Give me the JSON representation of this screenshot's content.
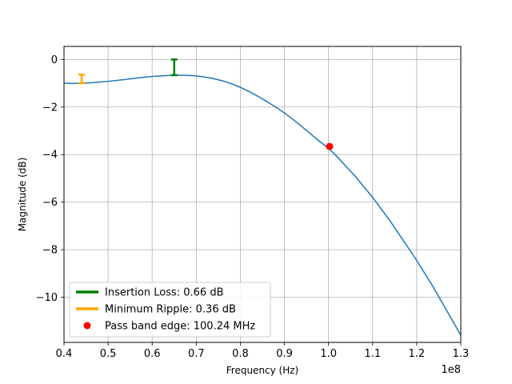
{
  "chart_data": {
    "type": "line",
    "xlabel": "Frequency (Hz)",
    "ylabel": "Magnitude (dB)",
    "x_offset_text": "1e8",
    "xlim": [
      40000000,
      130000000
    ],
    "ylim": [
      -11.9,
      0.55
    ],
    "grid": true,
    "legend_placement": "lower-left",
    "x_ticks": [
      40000000,
      50000000,
      60000000,
      70000000,
      80000000,
      90000000,
      100000000,
      110000000,
      120000000,
      130000000
    ],
    "x_tick_labels": [
      "0.4",
      "0.5",
      "0.6",
      "0.7",
      "0.8",
      "0.9",
      "1.0",
      "1.1",
      "1.2",
      "1.3"
    ],
    "y_ticks": [
      0,
      -2,
      -4,
      -6,
      -8,
      -10
    ],
    "y_tick_labels": [
      "0",
      "−2",
      "−4",
      "−6",
      "−8",
      "−10"
    ],
    "series": [
      {
        "color": "#1f77b4",
        "x": [
          40000000,
          42000000,
          44000000,
          46000000,
          48000000,
          50000000,
          52000000,
          54000000,
          56000000,
          58000000,
          60000000,
          62000000,
          64000000,
          66000000,
          68000000,
          70000000,
          72000000,
          74000000,
          76000000,
          78000000,
          80000000,
          82000000,
          84000000,
          86000000,
          88000000,
          90000000,
          92000000,
          94000000,
          96000000,
          98000000,
          100000000,
          102000000,
          104000000,
          106000000,
          108000000,
          110000000,
          112000000,
          114000000,
          116000000,
          118000000,
          120000000,
          122000000,
          124000000,
          126000000,
          128000000,
          130000000
        ],
        "y": [
          -0.99,
          -1.01,
          -1.0,
          -0.98,
          -0.95,
          -0.92,
          -0.88,
          -0.84,
          -0.79,
          -0.75,
          -0.71,
          -0.69,
          -0.67,
          -0.66,
          -0.67,
          -0.69,
          -0.74,
          -0.81,
          -0.9,
          -1.02,
          -1.17,
          -1.35,
          -1.55,
          -1.77,
          -2.0,
          -2.25,
          -2.53,
          -2.83,
          -3.14,
          -3.45,
          -3.73,
          -4.1,
          -4.5,
          -4.9,
          -5.35,
          -5.8,
          -6.3,
          -6.8,
          -7.35,
          -7.9,
          -8.45,
          -9.05,
          -9.65,
          -10.3,
          -10.95,
          -11.6
        ]
      }
    ],
    "markers": {
      "insertion_loss": {
        "label": "Insertion Loss: 0.66 dB",
        "color": "#008000",
        "x": 65000000,
        "y_top": 0,
        "y_bottom": -0.66
      },
      "minimum_ripple": {
        "label": "Minimum Ripple: 0.36 dB",
        "color": "#ffa500",
        "x": 44000000,
        "y_top": -0.64,
        "y_bottom": -1.0
      },
      "pass_band_edge": {
        "label": "Pass band edge: 100.24 MHz",
        "color": "#ff0000",
        "x": 100240000,
        "y": -3.66
      }
    }
  }
}
